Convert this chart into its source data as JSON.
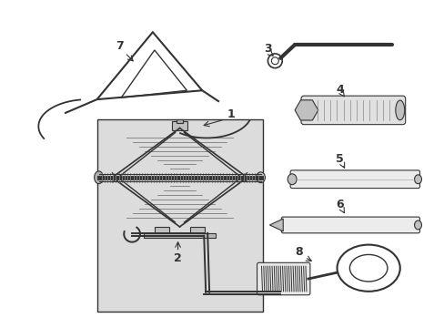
{
  "background_color": "#ffffff",
  "box_bg": "#dcdcdc",
  "line_color": "#333333",
  "figsize": [
    4.89,
    3.6
  ],
  "dpi": 100
}
